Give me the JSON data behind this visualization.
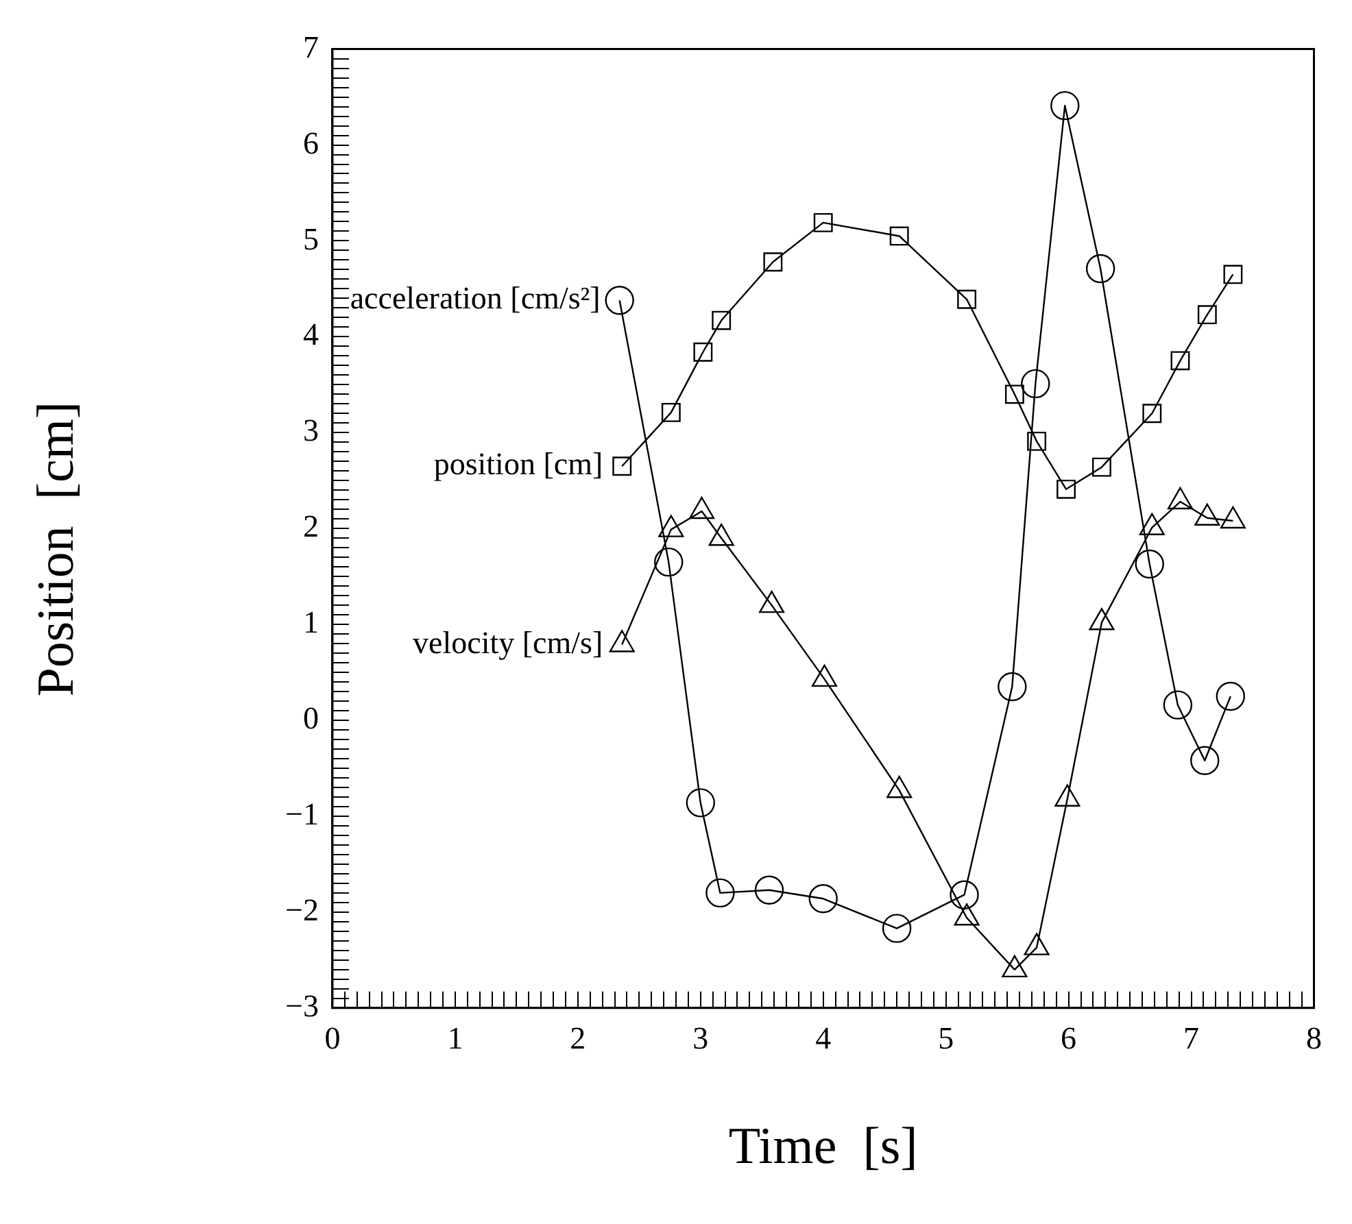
{
  "chart_data": {
    "type": "line",
    "xlabel": "Time  [s]",
    "ylabel": "Position  [cm]",
    "xlim": [
      0,
      8
    ],
    "xticks": [
      0,
      {
        "value": 0.1,
        "label": null
      },
      {
        "value": 0.2,
        "label": null
      },
      {
        "value": 0.3,
        "label": null
      },
      {
        "value": 0.4,
        "label": null
      },
      {
        "value": 0.5,
        "label": null
      },
      {
        "value": 0.6,
        "label": null
      },
      {
        "value": 0.7,
        "label": null
      },
      {
        "value": 0.8,
        "label": null
      },
      {
        "value": 0.9,
        "label": null
      },
      1,
      {
        "value": 1.1,
        "label": null
      },
      {
        "value": 1.2,
        "label": null
      },
      {
        "value": 1.3,
        "label": null
      },
      {
        "value": 1.4,
        "label": null
      },
      {
        "value": 1.5,
        "label": null
      },
      {
        "value": 1.6,
        "label": null
      },
      {
        "value": 1.7,
        "label": null
      },
      {
        "value": 1.8,
        "label": null
      },
      {
        "value": 1.9,
        "label": null
      },
      2,
      {
        "value": 2.1,
        "label": null
      },
      {
        "value": 2.2,
        "label": null
      },
      {
        "value": 2.3,
        "label": null
      },
      {
        "value": 2.4,
        "label": null
      },
      {
        "value": 2.5,
        "label": null
      },
      {
        "value": 2.6,
        "label": null
      },
      {
        "value": 2.7,
        "label": null
      },
      {
        "value": 2.8,
        "label": null
      },
      {
        "value": 2.9,
        "label": null
      },
      3,
      {
        "value": 3.1,
        "label": null
      },
      {
        "value": 3.2,
        "label": null
      },
      {
        "value": 3.3,
        "label": null
      },
      {
        "value": 3.4,
        "label": null
      },
      {
        "value": 3.5,
        "label": null
      },
      {
        "value": 3.6,
        "label": null
      },
      {
        "value": 3.7,
        "label": null
      },
      {
        "value": 3.8,
        "label": null
      },
      {
        "value": 3.9,
        "label": null
      },
      4,
      {
        "value": 4.1,
        "label": null
      },
      {
        "value": 4.2,
        "label": null
      },
      {
        "value": 4.3,
        "label": null
      },
      {
        "value": 4.4,
        "label": null
      },
      {
        "value": 4.5,
        "label": null
      },
      {
        "value": 4.6,
        "label": null
      },
      {
        "value": 4.7,
        "label": null
      },
      {
        "value": 4.8,
        "label": null
      },
      {
        "value": 4.9,
        "label": null
      },
      5,
      {
        "value": 5.1,
        "label": null
      },
      {
        "value": 5.2,
        "label": null
      },
      {
        "value": 5.3,
        "label": null
      },
      {
        "value": 5.4,
        "label": null
      },
      {
        "value": 5.5,
        "label": null
      },
      {
        "value": 5.6,
        "label": null
      },
      {
        "value": 5.7,
        "label": null
      },
      {
        "value": 5.8,
        "label": null
      },
      {
        "value": 5.9,
        "label": null
      },
      6,
      {
        "value": 6.1,
        "label": null
      },
      {
        "value": 6.2,
        "label": null
      },
      {
        "value": 6.3,
        "label": null
      },
      {
        "value": 6.4,
        "label": null
      },
      {
        "value": 6.5,
        "label": null
      },
      {
        "value": 6.6,
        "label": null
      },
      {
        "value": 6.7,
        "label": null
      },
      {
        "value": 6.8,
        "label": null
      },
      {
        "value": 6.9,
        "label": null
      },
      7,
      {
        "value": 7.1,
        "label": null
      },
      {
        "value": 7.2,
        "label": null
      },
      {
        "value": 7.3,
        "label": null
      },
      {
        "value": 7.4,
        "label": null
      },
      {
        "value": 7.5,
        "label": null
      },
      {
        "value": 7.6,
        "label": null
      },
      {
        "value": 7.7,
        "label": null
      },
      {
        "value": 7.8,
        "label": null
      },
      {
        "value": 7.9,
        "label": null
      },
      8
    ],
    "ylim": [
      -3,
      7
    ],
    "yticks": [
      -3,
      {
        "value": -2.9,
        "label": null
      },
      {
        "value": -2.8,
        "label": null
      },
      {
        "value": -2.7,
        "label": null
      },
      {
        "value": -2.6,
        "label": null
      },
      {
        "value": -2.5,
        "label": null
      },
      {
        "value": -2.4,
        "label": null
      },
      {
        "value": -2.3,
        "label": null
      },
      {
        "value": -2.2,
        "label": null
      },
      {
        "value": -2.1,
        "label": null
      },
      -2,
      {
        "value": -1.9,
        "label": null
      },
      {
        "value": -1.8,
        "label": null
      },
      {
        "value": -1.7,
        "label": null
      },
      {
        "value": -1.6,
        "label": null
      },
      {
        "value": -1.5,
        "label": null
      },
      {
        "value": -1.4,
        "label": null
      },
      {
        "value": -1.3,
        "label": null
      },
      {
        "value": -1.2,
        "label": null
      },
      {
        "value": -1.1,
        "label": null
      },
      -1,
      {
        "value": -0.9,
        "label": null
      },
      {
        "value": -0.8,
        "label": null
      },
      {
        "value": -0.7,
        "label": null
      },
      {
        "value": -0.6,
        "label": null
      },
      {
        "value": -0.5,
        "label": null
      },
      {
        "value": -0.4,
        "label": null
      },
      {
        "value": -0.3,
        "label": null
      },
      {
        "value": -0.2,
        "label": null
      },
      {
        "value": -0.1,
        "label": null
      },
      0,
      {
        "value": 0.1,
        "label": null
      },
      {
        "value": 0.2,
        "label": null
      },
      {
        "value": 0.3,
        "label": null
      },
      {
        "value": 0.4,
        "label": null
      },
      {
        "value": 0.5,
        "label": null
      },
      {
        "value": 0.6,
        "label": null
      },
      {
        "value": 0.7,
        "label": null
      },
      {
        "value": 0.8,
        "label": null
      },
      {
        "value": 0.9,
        "label": null
      },
      1,
      {
        "value": 1.1,
        "label": null
      },
      {
        "value": 1.2,
        "label": null
      },
      {
        "value": 1.3,
        "label": null
      },
      {
        "value": 1.4,
        "label": null
      },
      {
        "value": 1.5,
        "label": null
      },
      {
        "value": 1.6,
        "label": null
      },
      {
        "value": 1.7,
        "label": null
      },
      {
        "value": 1.8,
        "label": null
      },
      {
        "value": 1.9,
        "label": null
      },
      2,
      {
        "value": 2.1,
        "label": null
      },
      {
        "value": 2.2,
        "label": null
      },
      {
        "value": 2.3,
        "label": null
      },
      {
        "value": 2.4,
        "label": null
      },
      {
        "value": 2.5,
        "label": null
      },
      {
        "value": 2.6,
        "label": null
      },
      {
        "value": 2.7,
        "label": null
      },
      {
        "value": 2.8,
        "label": null
      },
      {
        "value": 2.9,
        "label": null
      },
      3,
      {
        "value": 3.1,
        "label": null
      },
      {
        "value": 3.2,
        "label": null
      },
      {
        "value": 3.3,
        "label": null
      },
      {
        "value": 3.4,
        "label": null
      },
      {
        "value": 3.5,
        "label": null
      },
      {
        "value": 3.6,
        "label": null
      },
      {
        "value": 3.7,
        "label": null
      },
      {
        "value": 3.8,
        "label": null
      },
      {
        "value": 3.9,
        "label": null
      },
      4,
      {
        "value": 4.1,
        "label": null
      },
      {
        "value": 4.2,
        "label": null
      },
      {
        "value": 4.3,
        "label": null
      },
      {
        "value": 4.4,
        "label": null
      },
      {
        "value": 4.5,
        "label": null
      },
      {
        "value": 4.6,
        "label": null
      },
      {
        "value": 4.7,
        "label": null
      },
      {
        "value": 4.8,
        "label": null
      },
      {
        "value": 4.9,
        "label": null
      },
      5,
      {
        "value": 5.1,
        "label": null
      },
      {
        "value": 5.2,
        "label": null
      },
      {
        "value": 5.3,
        "label": null
      },
      {
        "value": 5.4,
        "label": null
      },
      {
        "value": 5.5,
        "label": null
      },
      {
        "value": 5.6,
        "label": null
      },
      {
        "value": 5.7,
        "label": null
      },
      {
        "value": 5.8,
        "label": null
      },
      {
        "value": 5.9,
        "label": null
      },
      6,
      {
        "value": 6.1,
        "label": null
      },
      {
        "value": 6.2,
        "label": null
      },
      {
        "value": 6.3,
        "label": null
      },
      {
        "value": 6.4,
        "label": null
      },
      {
        "value": 6.5,
        "label": null
      },
      {
        "value": 6.6,
        "label": null
      },
      {
        "value": 6.7,
        "label": null
      },
      {
        "value": 6.8,
        "label": null
      },
      {
        "value": 6.9,
        "label": null
      },
      7
    ],
    "grid": false,
    "legend": "left",
    "line_style": "solid",
    "series": [
      {
        "name": "acceleration [cm/s²]",
        "color": "#000000",
        "marker": "circle",
        "x": [
          2.34,
          2.74,
          3.0,
          3.16,
          3.56,
          4.0,
          4.6,
          5.15,
          5.54,
          5.73,
          5.97,
          6.26,
          6.66,
          6.89,
          7.11,
          7.32
        ],
        "values": [
          4.38,
          1.65,
          -0.86,
          -1.8,
          -1.77,
          -1.86,
          -2.17,
          -1.82,
          0.35,
          3.51,
          6.41,
          4.71,
          1.63,
          0.16,
          -0.42,
          0.25
        ]
      },
      {
        "name": "position [cm]",
        "color": "#000000",
        "marker": "square",
        "x": [
          2.36,
          2.76,
          3.02,
          3.17,
          3.59,
          4.0,
          4.62,
          5.17,
          5.56,
          5.74,
          5.98,
          6.27,
          6.68,
          6.91,
          7.13,
          7.34
        ],
        "values": [
          2.65,
          3.21,
          3.84,
          4.17,
          4.78,
          5.19,
          5.05,
          4.39,
          3.4,
          2.91,
          2.41,
          2.64,
          3.2,
          3.75,
          4.23,
          4.65
        ]
      },
      {
        "name": "velocity [cm/s]",
        "color": "#000000",
        "marker": "triangle",
        "x": [
          2.36,
          2.76,
          3.01,
          3.17,
          3.58,
          4.01,
          4.62,
          5.17,
          5.56,
          5.74,
          5.99,
          6.27,
          6.68,
          6.91,
          7.13,
          7.34
        ],
        "values": [
          0.79,
          1.99,
          2.18,
          1.9,
          1.2,
          0.43,
          -0.73,
          -2.06,
          -2.6,
          -2.37,
          -0.82,
          1.02,
          2.01,
          2.28,
          2.11,
          2.08
        ]
      }
    ]
  }
}
